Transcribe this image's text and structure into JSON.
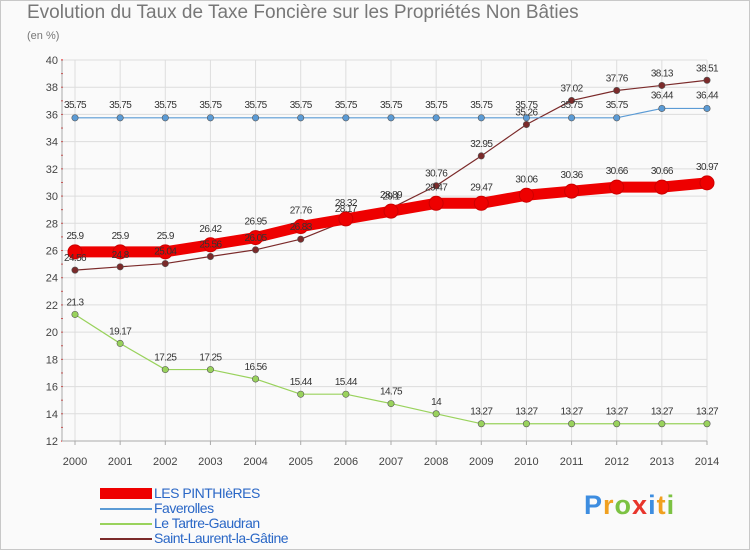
{
  "title": "Evolution du Taux de Taxe Foncière sur les Propriétés Non Bâties",
  "subtitle": "(en %)",
  "logo": {
    "letters": [
      {
        "char": "P",
        "color": "#3d8de0"
      },
      {
        "char": "r",
        "color": "#f0a020"
      },
      {
        "char": "o",
        "color": "#7cc243"
      },
      {
        "char": "x",
        "color": "#e8352c"
      },
      {
        "char": "i",
        "color": "#3d8de0"
      },
      {
        "char": "t",
        "color": "#f0a020"
      },
      {
        "char": "i",
        "color": "#7cc243"
      }
    ]
  },
  "chart_data": {
    "type": "line",
    "title": "Evolution du Taux de Taxe Foncière sur les Propriétés Non Bâties",
    "ylabel": "(en %)",
    "xlabel": "",
    "ylim": [
      12,
      40
    ],
    "yticks": [
      "12",
      "14",
      "16",
      "18",
      "20",
      "22",
      "24",
      "26",
      "28",
      "30",
      "32",
      "34",
      "36",
      "38",
      "40"
    ],
    "categories": [
      "2000",
      "2001",
      "2002",
      "2003",
      "2004",
      "2005",
      "2006",
      "2007",
      "2008",
      "2009",
      "2010",
      "2011",
      "2012",
      "2013",
      "2014"
    ],
    "grid": true,
    "series": [
      {
        "name": "Saint-Laurent-la-Gâtine",
        "color": "#7b2a2a",
        "values": [
          24.56,
          24.8,
          25.04,
          25.56,
          26.05,
          26.83,
          28.17,
          29.1,
          30.76,
          32.95,
          35.26,
          37.02,
          37.76,
          38.13,
          38.51
        ],
        "labels": [
          "24.56",
          "24.8",
          "25.04",
          "25.56",
          "26.05",
          "26.83",
          "28.17",
          "29.1",
          "30.76",
          "32.95",
          "35.26",
          "37.02",
          "37.76",
          "38.13",
          "38.51"
        ]
      },
      {
        "name": "Faverolles",
        "color": "#5b9bd5",
        "values": [
          35.75,
          35.75,
          35.75,
          35.75,
          35.75,
          35.75,
          35.75,
          35.75,
          35.75,
          35.75,
          35.75,
          35.75,
          35.75,
          36.44,
          36.44
        ],
        "labels": [
          "35.75",
          "35.75",
          "35.75",
          "35.75",
          "35.75",
          "35.75",
          "35.75",
          "35.75",
          "35.75",
          "35.75",
          "35.75",
          "35.75",
          "35.75",
          "36.44",
          "36.44"
        ]
      },
      {
        "name": "Le Tartre-Gaudran",
        "color": "#99d25c",
        "values": [
          21.3,
          19.17,
          17.25,
          17.25,
          16.56,
          15.44,
          15.44,
          14.75,
          14,
          13.27,
          13.27,
          13.27,
          13.27,
          13.27,
          13.27
        ],
        "labels": [
          "21.3",
          "19.17",
          "17.25",
          "17.25",
          "16.56",
          "15.44",
          "15.44",
          "14.75",
          "14",
          "13.27",
          "13.27",
          "13.27",
          "13.27",
          "13.27",
          "13.27"
        ]
      },
      {
        "name": "LES PINTHIèRES",
        "color": "#ee0000",
        "values": [
          25.9,
          25.9,
          25.9,
          26.42,
          26.95,
          27.76,
          28.32,
          28.89,
          29.47,
          29.47,
          30.06,
          30.36,
          30.66,
          30.66,
          30.97
        ],
        "labels": [
          "25.9",
          "25.9",
          "25.9",
          "26.42",
          "26.95",
          "27.76",
          "28.32",
          "28.89",
          "29.47",
          "29.47",
          "30.06",
          "30.36",
          "30.66",
          "30.66",
          "30.97"
        ]
      }
    ],
    "legend": {
      "placement": "bottom-left",
      "entries": [
        "LES PINTHIèRES",
        "Faverolles",
        "Le Tartre-Gaudran",
        "Saint-Laurent-la-Gâtine"
      ]
    }
  }
}
